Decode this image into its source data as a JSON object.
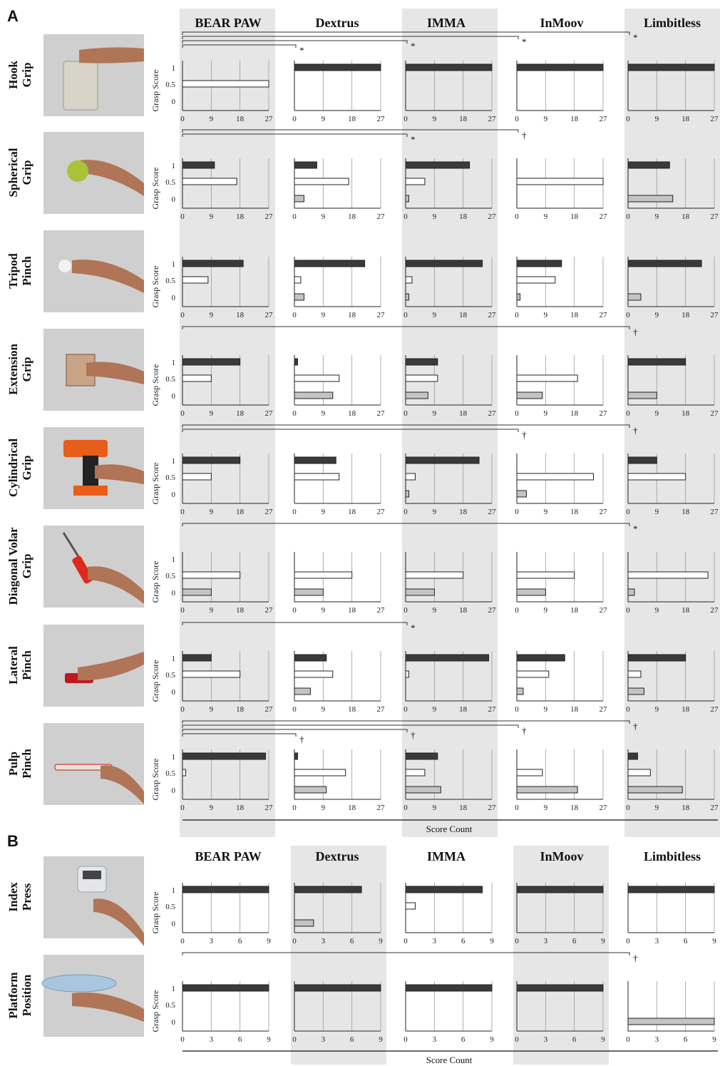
{
  "panels": [
    "A",
    "B"
  ],
  "devices_a": [
    "BEAR PAW",
    "Dextrus",
    "IMMA",
    "InMoov",
    "Limbitless"
  ],
  "devices_b": [
    "BEAR PAW",
    "Dextrus",
    "IMMA",
    "InMoov",
    "Limbitless"
  ],
  "y_label": "Grasp Score",
  "y_ticks": [
    "1",
    "0.5",
    "0"
  ],
  "x_title": "Score Count",
  "x_ticks_a": [
    "0",
    "9",
    "18",
    "27"
  ],
  "x_ticks_b": [
    "0",
    "3",
    "6",
    "9"
  ],
  "colors": {
    "score_1": "#3a3a3a",
    "score_05": "#ffffff",
    "score_0": "#c4c4c4",
    "shade": "#e6e6e6",
    "photo_bg": "#cfcfcf"
  },
  "icons": [
    "pitcher-photo",
    "ball-photo",
    "golf-ball-photo",
    "box-photo",
    "drill-photo",
    "screwdriver-photo",
    "stapler-photo",
    "marker-photo",
    "timer-photo",
    "plate-photo"
  ],
  "chart_data": [
    {
      "type": "bar",
      "title": "A",
      "xlabel": "Score Count",
      "ylabel": "Grasp Score",
      "xlim": [
        0,
        27
      ],
      "devices": [
        "BEAR PAW",
        "Dextrus",
        "IMMA",
        "InMoov",
        "Limbitless"
      ],
      "rows": [
        {
          "label": [
            "Hook",
            "Grip"
          ],
          "values": [
            [
              0,
              27,
              0
            ],
            [
              27,
              0,
              0
            ],
            [
              27,
              0,
              0
            ],
            [
              27,
              0,
              0
            ],
            [
              27,
              0,
              0
            ]
          ],
          "sig": [
            {
              "to": 1,
              "mark": "*"
            },
            {
              "to": 2,
              "mark": "*"
            },
            {
              "to": 3,
              "mark": "*"
            },
            {
              "to": 4,
              "mark": "*"
            }
          ]
        },
        {
          "label": [
            "Spherical",
            "Grip"
          ],
          "values": [
            [
              10,
              17,
              0
            ],
            [
              7,
              17,
              3
            ],
            [
              20,
              6,
              1
            ],
            [
              0,
              27,
              0
            ],
            [
              13,
              0,
              14
            ]
          ],
          "sig": [
            {
              "to": 2,
              "mark": "*"
            },
            {
              "to": 3,
              "mark": "†"
            }
          ]
        },
        {
          "label": [
            "Tripod",
            "Pinch"
          ],
          "values": [
            [
              19,
              8,
              0
            ],
            [
              22,
              2,
              3
            ],
            [
              24,
              2,
              1
            ],
            [
              14,
              12,
              1
            ],
            [
              23,
              0,
              4
            ]
          ],
          "sig": []
        },
        {
          "label": [
            "Extension",
            "Grip"
          ],
          "values": [
            [
              18,
              9,
              0
            ],
            [
              1,
              14,
              12
            ],
            [
              10,
              10,
              7
            ],
            [
              0,
              19,
              8
            ],
            [
              18,
              0,
              9
            ]
          ],
          "sig": [
            {
              "to": 4,
              "mark": "†"
            }
          ]
        },
        {
          "label": [
            "Cylindrical",
            "Grip"
          ],
          "values": [
            [
              18,
              9,
              0
            ],
            [
              13,
              14,
              0
            ],
            [
              23,
              3,
              1
            ],
            [
              0,
              24,
              3
            ],
            [
              9,
              18,
              0
            ]
          ],
          "sig": [
            {
              "to": 3,
              "mark": "†"
            },
            {
              "to": 4,
              "mark": "†"
            }
          ]
        },
        {
          "label": [
            "Diagonal Volar",
            "Grip"
          ],
          "values": [
            [
              0,
              18,
              9
            ],
            [
              0,
              18,
              9
            ],
            [
              0,
              18,
              9
            ],
            [
              0,
              18,
              9
            ],
            [
              0,
              25,
              2
            ]
          ],
          "sig": [
            {
              "to": 4,
              "mark": "*"
            }
          ]
        },
        {
          "label": [
            "Lateral",
            "Pinch"
          ],
          "values": [
            [
              9,
              18,
              0
            ],
            [
              10,
              12,
              5
            ],
            [
              26,
              1,
              0
            ],
            [
              15,
              10,
              2
            ],
            [
              18,
              4,
              5
            ]
          ],
          "sig": [
            {
              "to": 2,
              "mark": "*"
            }
          ]
        },
        {
          "label": [
            "Pulp",
            "Pinch"
          ],
          "values": [
            [
              26,
              1,
              0
            ],
            [
              1,
              16,
              10
            ],
            [
              10,
              6,
              11
            ],
            [
              0,
              8,
              19
            ],
            [
              3,
              7,
              17
            ]
          ],
          "sig": [
            {
              "to": 1,
              "mark": "†"
            },
            {
              "to": 2,
              "mark": "†"
            },
            {
              "to": 3,
              "mark": "†"
            },
            {
              "to": 4,
              "mark": "†"
            }
          ]
        }
      ]
    },
    {
      "type": "bar",
      "title": "B",
      "xlabel": "Score Count",
      "ylabel": "Grasp Score",
      "xlim": [
        0,
        9
      ],
      "devices": [
        "BEAR PAW",
        "Dextrus",
        "IMMA",
        "InMoov",
        "Limbitless"
      ],
      "rows": [
        {
          "label": [
            "Index",
            "Press"
          ],
          "values": [
            [
              9,
              0,
              0
            ],
            [
              7,
              0,
              2
            ],
            [
              8,
              1,
              0
            ],
            [
              9,
              0,
              0
            ],
            [
              9,
              0,
              0
            ]
          ],
          "sig": []
        },
        {
          "label": [
            "Platform",
            "Position"
          ],
          "values": [
            [
              9,
              0,
              0
            ],
            [
              9,
              0,
              0
            ],
            [
              9,
              0,
              0
            ],
            [
              9,
              0,
              0
            ],
            [
              0,
              0,
              9
            ]
          ],
          "sig": [
            {
              "to": 4,
              "mark": "†"
            }
          ]
        }
      ]
    }
  ]
}
